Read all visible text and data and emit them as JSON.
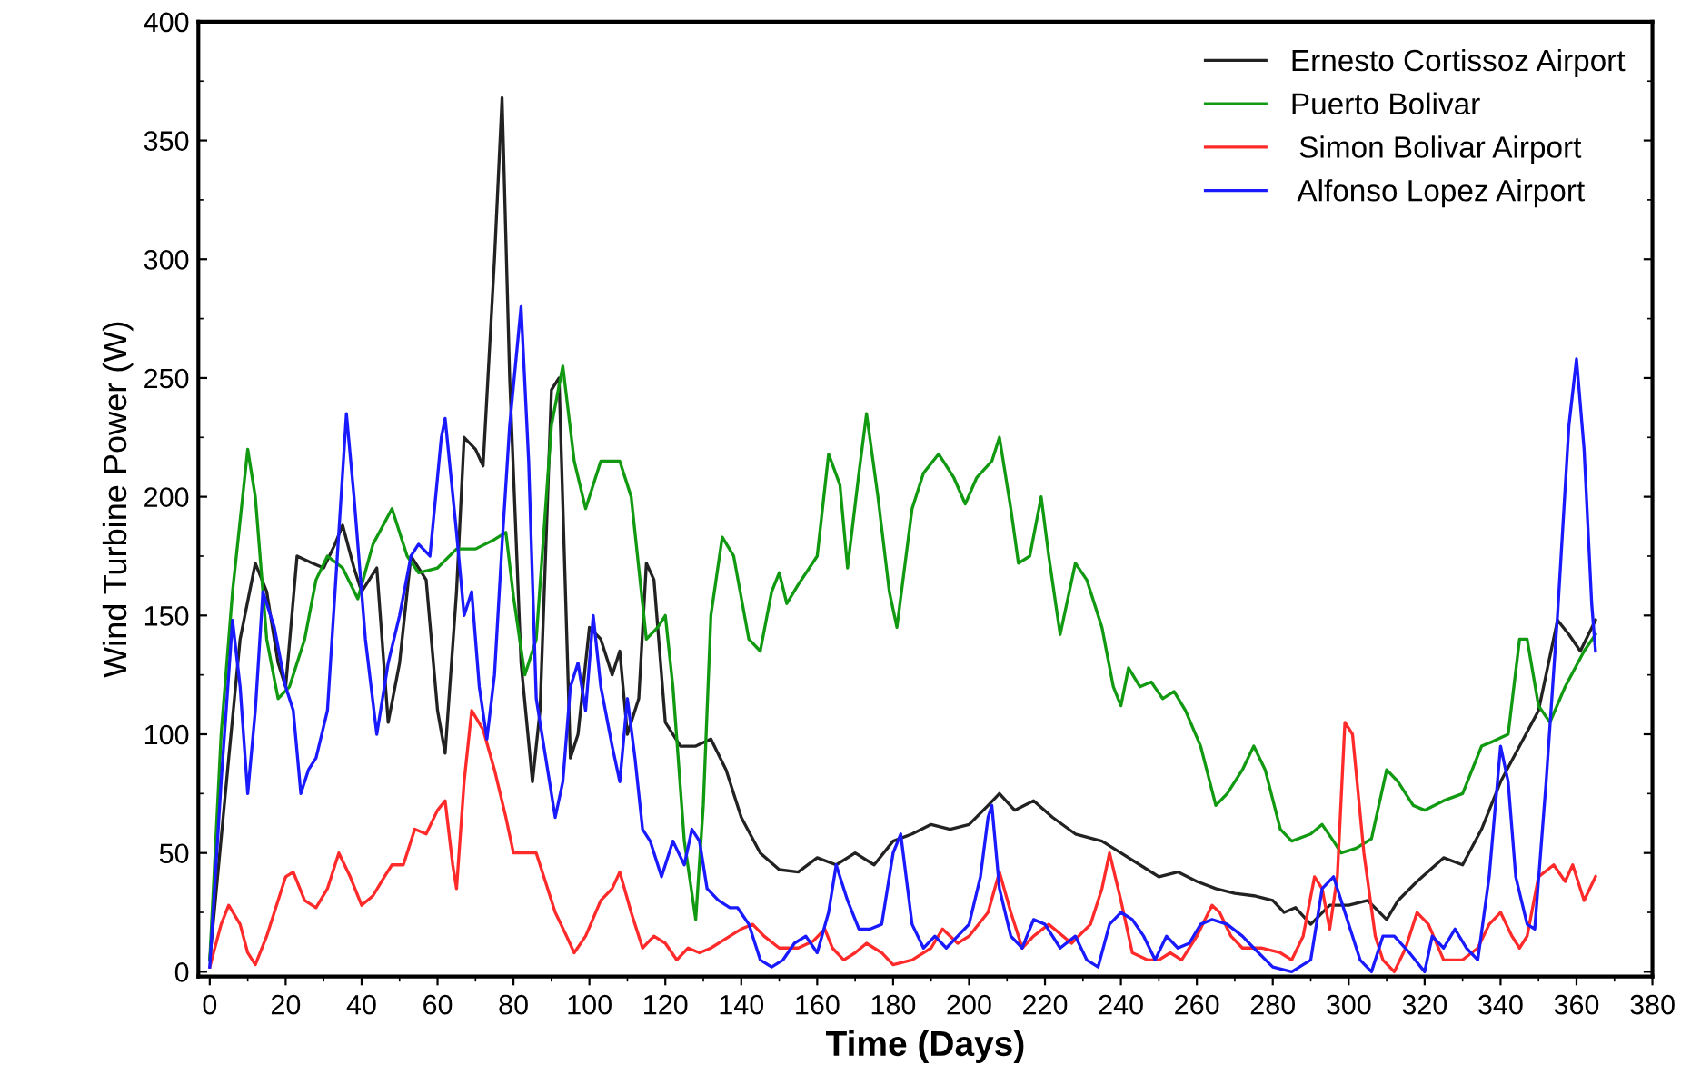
{
  "chart_data": {
    "type": "line",
    "xlabel": "Time (Days)",
    "ylabel": "Wind Turbine Power (W)",
    "xlim": [
      -3,
      380
    ],
    "ylim": [
      -2,
      400
    ],
    "xticks": [
      0,
      20,
      40,
      60,
      80,
      100,
      120,
      140,
      160,
      180,
      200,
      220,
      240,
      260,
      280,
      300,
      320,
      340,
      360,
      380
    ],
    "yticks": [
      0,
      50,
      100,
      150,
      200,
      250,
      300,
      350,
      400
    ],
    "legend": "top right",
    "grid": false,
    "marker": "none",
    "line_style": "solid",
    "series": [
      {
        "name": "Ernesto Cortissoz Airport",
        "color": "#222222",
        "x": [
          0,
          5,
          8,
          12,
          15,
          18,
          20,
          23,
          27,
          30,
          33,
          35,
          38,
          40,
          44,
          47,
          50,
          53,
          57,
          60,
          62,
          65,
          67,
          70,
          72,
          75,
          77,
          79,
          82,
          85,
          87,
          90,
          92,
          95,
          97,
          100,
          103,
          106,
          108,
          110,
          113,
          115,
          117,
          120,
          124,
          128,
          132,
          136,
          140,
          145,
          150,
          155,
          160,
          165,
          170,
          175,
          180,
          185,
          190,
          195,
          200,
          205,
          208,
          212,
          217,
          222,
          228,
          235,
          240,
          245,
          250,
          255,
          260,
          265,
          270,
          275,
          280,
          283,
          286,
          290,
          295,
          300,
          305,
          310,
          313,
          318,
          325,
          330,
          335,
          340,
          345,
          350,
          355,
          358,
          361,
          365
        ],
        "values": [
          5,
          90,
          140,
          172,
          160,
          130,
          120,
          175,
          172,
          170,
          180,
          188,
          170,
          160,
          170,
          105,
          130,
          175,
          165,
          110,
          92,
          160,
          225,
          220,
          213,
          300,
          368,
          250,
          130,
          80,
          110,
          245,
          250,
          90,
          100,
          145,
          140,
          125,
          135,
          100,
          115,
          172,
          165,
          105,
          95,
          95,
          98,
          85,
          65,
          50,
          43,
          42,
          48,
          45,
          50,
          45,
          55,
          58,
          62,
          60,
          62,
          70,
          75,
          68,
          72,
          65,
          58,
          55,
          50,
          45,
          40,
          42,
          38,
          35,
          33,
          32,
          30,
          25,
          27,
          20,
          28,
          28,
          30,
          22,
          30,
          38,
          48,
          45,
          60,
          80,
          95,
          110,
          148,
          142,
          135,
          148
        ]
      },
      {
        "name": "Puerto Bolivar",
        "color": "#119911",
        "x": [
          0,
          3,
          6,
          10,
          12,
          15,
          18,
          21,
          25,
          28,
          31,
          35,
          39,
          43,
          48,
          52,
          55,
          60,
          65,
          70,
          75,
          78,
          80,
          83,
          86,
          90,
          93,
          96,
          99,
          103,
          108,
          111,
          115,
          118,
          120,
          122,
          125,
          128,
          130,
          132,
          135,
          138,
          142,
          145,
          148,
          150,
          152,
          155,
          160,
          163,
          166,
          168,
          171,
          173,
          176,
          179,
          181,
          185,
          188,
          192,
          196,
          199,
          202,
          206,
          208,
          211,
          213,
          216,
          219,
          221,
          224,
          228,
          231,
          235,
          238,
          240,
          242,
          245,
          248,
          251,
          254,
          257,
          261,
          265,
          268,
          272,
          275,
          278,
          282,
          285,
          290,
          293,
          296,
          298,
          302,
          306,
          310,
          313,
          317,
          320,
          325,
          330,
          335,
          338,
          342,
          345,
          347,
          350,
          353,
          357,
          362,
          365
        ],
        "values": [
          5,
          100,
          160,
          220,
          200,
          140,
          115,
          120,
          140,
          165,
          175,
          170,
          157,
          180,
          195,
          175,
          168,
          170,
          178,
          178,
          182,
          185,
          158,
          125,
          140,
          230,
          255,
          215,
          195,
          215,
          215,
          200,
          140,
          145,
          150,
          120,
          55,
          22,
          70,
          150,
          183,
          175,
          140,
          135,
          160,
          168,
          155,
          163,
          175,
          218,
          205,
          170,
          210,
          235,
          200,
          160,
          145,
          195,
          210,
          218,
          208,
          197,
          208,
          215,
          225,
          195,
          172,
          175,
          200,
          175,
          142,
          172,
          165,
          145,
          120,
          112,
          128,
          120,
          122,
          115,
          118,
          110,
          95,
          70,
          75,
          85,
          95,
          85,
          60,
          55,
          58,
          62,
          55,
          50,
          52,
          56,
          85,
          80,
          70,
          68,
          72,
          75,
          95,
          97,
          100,
          140,
          140,
          112,
          105,
          120,
          135,
          142
        ]
      },
      {
        "name": " Simon Bolivar Airport",
        "color": "#ff2a2a",
        "x": [
          0,
          3,
          5,
          8,
          10,
          12,
          15,
          18,
          20,
          22,
          25,
          28,
          31,
          34,
          37,
          40,
          43,
          46,
          48,
          51,
          54,
          57,
          60,
          62,
          64,
          65,
          67,
          69,
          72,
          75,
          78,
          80,
          83,
          86,
          88,
          91,
          94,
          96,
          99,
          103,
          106,
          108,
          111,
          114,
          117,
          120,
          123,
          126,
          129,
          132,
          137,
          140,
          143,
          146,
          150,
          155,
          159,
          162,
          164,
          167,
          170,
          173,
          177,
          180,
          185,
          190,
          193,
          197,
          200,
          205,
          208,
          211,
          214,
          217,
          221,
          227,
          232,
          235,
          237,
          240,
          243,
          247,
          250,
          253,
          256,
          260,
          264,
          266,
          269,
          272,
          277,
          282,
          285,
          288,
          291,
          293,
          295,
          297,
          299,
          301,
          304,
          307,
          309,
          312,
          315,
          318,
          321,
          325,
          330,
          334,
          337,
          340,
          343,
          345,
          347,
          350,
          354,
          357,
          359,
          362,
          365
        ],
        "values": [
          2,
          20,
          28,
          20,
          8,
          3,
          15,
          30,
          40,
          42,
          30,
          27,
          35,
          50,
          40,
          28,
          32,
          40,
          45,
          45,
          60,
          58,
          68,
          72,
          45,
          35,
          80,
          110,
          102,
          85,
          65,
          50,
          50,
          50,
          40,
          25,
          15,
          8,
          15,
          30,
          35,
          42,
          25,
          10,
          15,
          12,
          5,
          10,
          8,
          10,
          15,
          18,
          20,
          15,
          10,
          10,
          13,
          18,
          10,
          5,
          8,
          12,
          8,
          3,
          5,
          10,
          18,
          12,
          15,
          25,
          42,
          25,
          10,
          15,
          20,
          12,
          20,
          35,
          50,
          30,
          8,
          5,
          5,
          8,
          5,
          15,
          28,
          25,
          15,
          10,
          10,
          8,
          5,
          15,
          40,
          35,
          18,
          40,
          105,
          100,
          50,
          15,
          5,
          0,
          10,
          25,
          20,
          5,
          5,
          10,
          20,
          25,
          15,
          10,
          15,
          40,
          45,
          38,
          45,
          30,
          40
        ]
      },
      {
        "name": " Alfonso Lopez Airport",
        "color": "#1a1aff",
        "x": [
          0,
          3,
          6,
          8,
          10,
          12,
          14,
          17,
          20,
          22,
          24,
          26,
          28,
          31,
          33,
          35,
          36,
          38,
          41,
          44,
          47,
          50,
          53,
          55,
          58,
          61,
          62,
          65,
          67,
          69,
          71,
          73,
          75,
          77,
          79,
          82,
          84,
          86,
          89,
          91,
          93,
          95,
          97,
          99,
          101,
          103,
          106,
          108,
          110,
          112,
          114,
          116,
          119,
          122,
          125,
          127,
          129,
          131,
          134,
          137,
          139,
          142,
          145,
          148,
          151,
          154,
          157,
          160,
          163,
          165,
          168,
          171,
          174,
          177,
          180,
          182,
          185,
          188,
          191,
          194,
          197,
          200,
          203,
          205,
          206,
          208,
          211,
          214,
          217,
          220,
          224,
          228,
          231,
          234,
          237,
          240,
          243,
          246,
          249,
          252,
          255,
          258,
          261,
          264,
          268,
          272,
          275,
          280,
          285,
          290,
          293,
          296,
          300,
          303,
          306,
          309,
          312,
          316,
          320,
          322,
          325,
          328,
          331,
          334,
          337,
          340,
          342,
          344,
          347,
          349,
          352,
          355,
          358,
          360,
          362,
          364,
          365
        ],
        "values": [
          2,
          80,
          148,
          120,
          75,
          110,
          160,
          145,
          120,
          110,
          75,
          85,
          90,
          110,
          160,
          210,
          235,
          200,
          140,
          100,
          130,
          150,
          175,
          180,
          175,
          225,
          233,
          185,
          150,
          160,
          120,
          98,
          125,
          180,
          230,
          280,
          215,
          115,
          85,
          65,
          80,
          120,
          130,
          110,
          150,
          120,
          95,
          80,
          115,
          90,
          60,
          55,
          40,
          55,
          45,
          60,
          55,
          35,
          30,
          27,
          27,
          20,
          5,
          2,
          5,
          12,
          15,
          8,
          25,
          45,
          30,
          18,
          18,
          20,
          50,
          58,
          20,
          10,
          15,
          10,
          15,
          20,
          40,
          65,
          70,
          35,
          15,
          10,
          22,
          20,
          10,
          15,
          5,
          2,
          20,
          25,
          22,
          15,
          5,
          15,
          10,
          12,
          20,
          22,
          20,
          15,
          10,
          2,
          0,
          5,
          35,
          40,
          20,
          5,
          0,
          15,
          15,
          8,
          0,
          15,
          10,
          18,
          10,
          5,
          40,
          95,
          80,
          40,
          20,
          18,
          80,
          150,
          230,
          258,
          220,
          155,
          135
        ]
      }
    ]
  }
}
